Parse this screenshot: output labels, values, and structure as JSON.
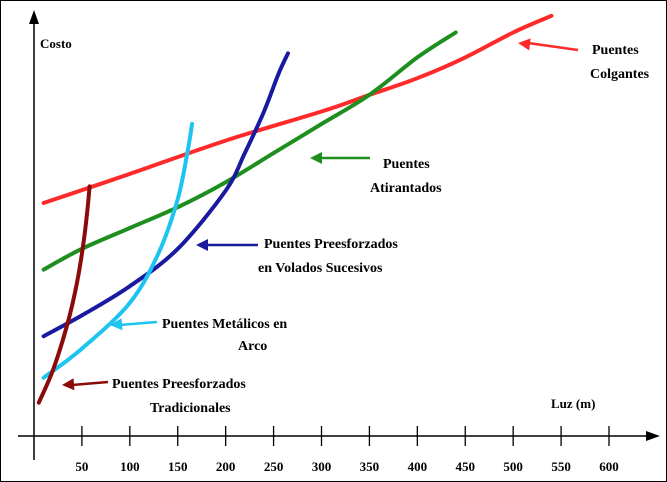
{
  "chart_data": {
    "type": "line",
    "title": "",
    "ylabel": "Costo",
    "xlabel": "Luz (m)",
    "xlim": [
      0,
      650
    ],
    "ylim": [
      0,
      100
    ],
    "x_ticks": [
      50,
      100,
      150,
      200,
      250,
      300,
      350,
      400,
      450,
      500,
      550,
      600
    ],
    "x_tick_labels": [
      "50",
      "100",
      "150",
      "200",
      "250",
      "300",
      "350",
      "400",
      "450",
      "500",
      "550",
      "600"
    ],
    "grid": false,
    "legend": "annotations",
    "series": [
      {
        "id": "colgantes",
        "label_lines": [
          "Puentes",
          "Colgantes"
        ],
        "color": "#ff2a2a",
        "x": [
          10,
          100,
          200,
          300,
          350,
          400,
          450,
          500,
          540
        ],
        "y": [
          56,
          63,
          71,
          78,
          82,
          86,
          91,
          97,
          101
        ]
      },
      {
        "id": "atirantados",
        "label_lines": [
          "Puentes",
          "Atirantados"
        ],
        "color": "#1e8f1e",
        "x": [
          10,
          50,
          100,
          150,
          200,
          250,
          300,
          350,
          400,
          440
        ],
        "y": [
          40,
          45,
          50,
          55,
          61,
          68,
          75,
          82,
          91,
          97
        ]
      },
      {
        "id": "volados",
        "label_lines": [
          "Puentes Preesforzados",
          "en Volados Sucesivos"
        ],
        "color": "#1a1aa0",
        "x": [
          10,
          50,
          100,
          150,
          200,
          220,
          240,
          255,
          265
        ],
        "y": [
          24,
          29,
          36,
          45,
          59,
          68,
          78,
          87,
          92
        ]
      },
      {
        "id": "metalicos",
        "label_lines": [
          "Puentes Metálicos en",
          "Arco"
        ],
        "color": "#1ec4f0",
        "x": [
          10,
          50,
          100,
          130,
          150,
          160,
          165
        ],
        "y": [
          14,
          21,
          32,
          44,
          57,
          68,
          75
        ]
      },
      {
        "id": "tradicionales",
        "label_lines": [
          "Puentes Preesforzados",
          "Tradicionales"
        ],
        "color": "#8b0a0a",
        "x": [
          5,
          20,
          35,
          45,
          52,
          56,
          58
        ],
        "y": [
          8,
          16,
          27,
          37,
          47,
          55,
          60
        ]
      }
    ]
  }
}
